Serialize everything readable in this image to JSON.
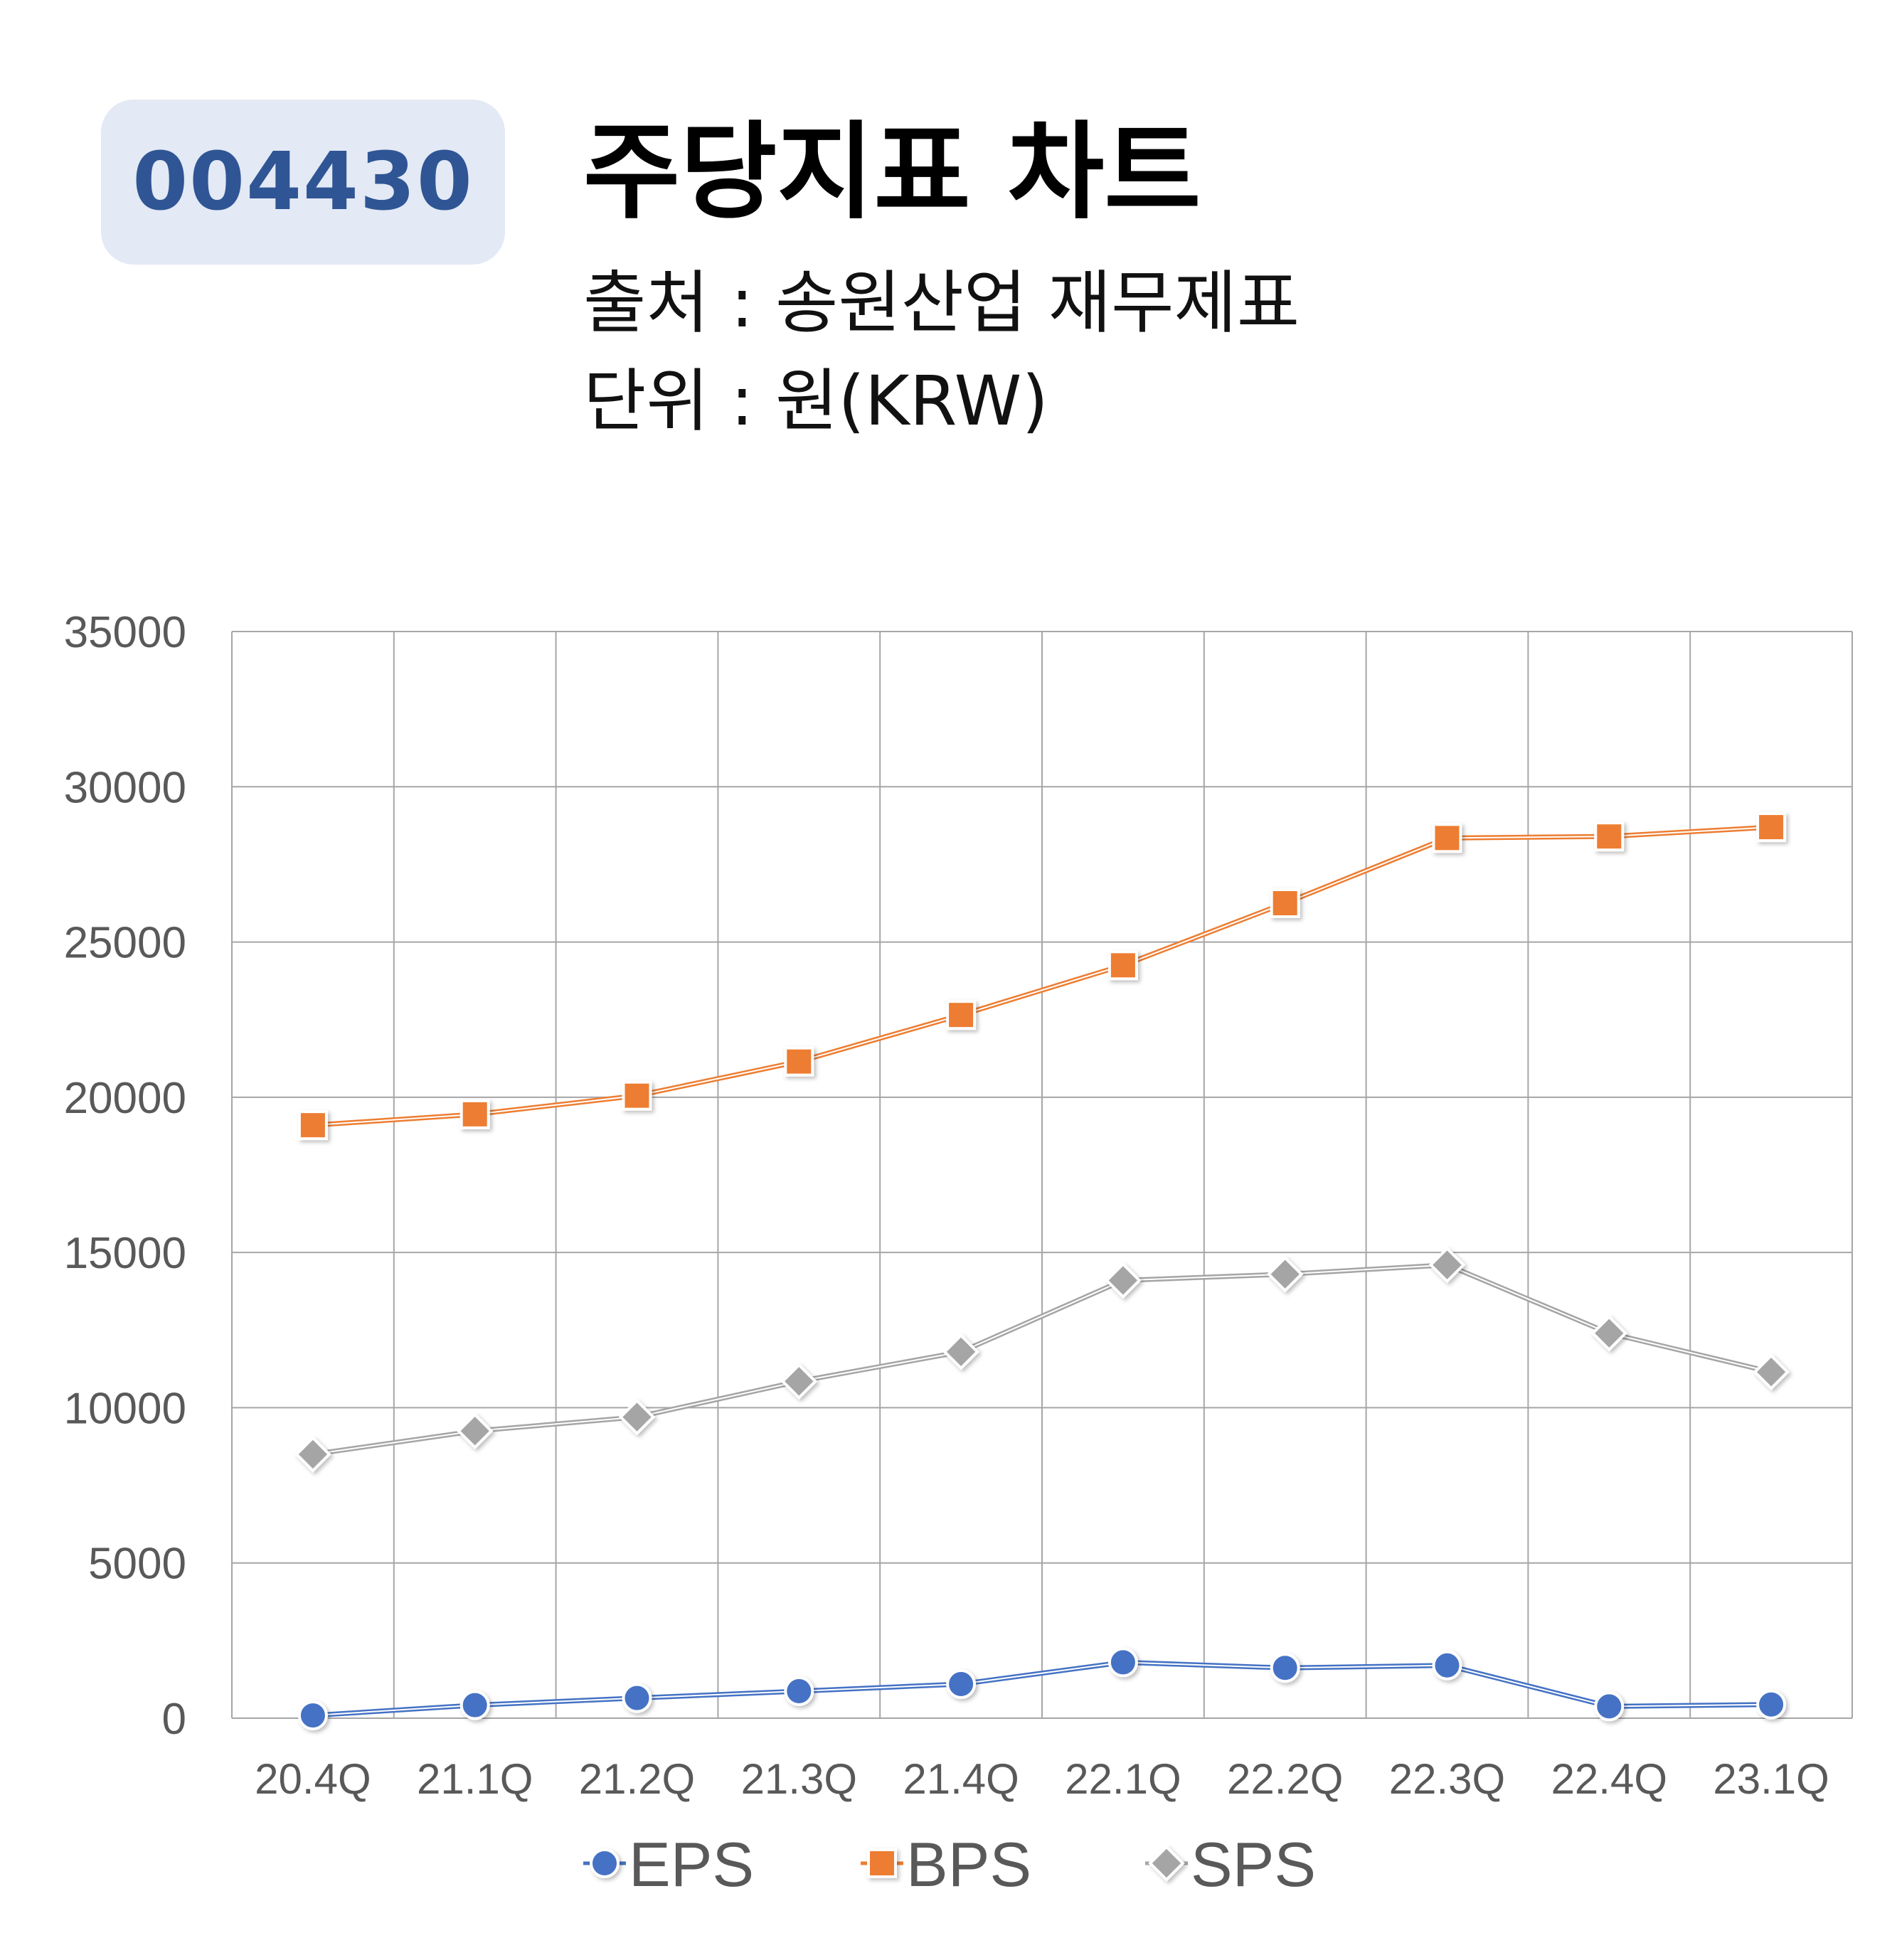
{
  "header": {
    "code": "004430",
    "title": "주당지표 차트",
    "source": "출처 : 송원산업 재무제표",
    "unit": "단위 : 원(KRW)"
  },
  "chart_data": {
    "type": "line",
    "title": "주당지표 차트",
    "xlabel": "",
    "ylabel": "",
    "categories": [
      "20.4Q",
      "21.1Q",
      "21.2Q",
      "21.3Q",
      "21.4Q",
      "22.1Q",
      "22.2Q",
      "22.3Q",
      "22.4Q",
      "23.1Q"
    ],
    "ylim": [
      0,
      35000
    ],
    "yticks": [
      0,
      5000,
      10000,
      15000,
      20000,
      25000,
      30000,
      35000
    ],
    "grid": true,
    "legend_position": "bottom",
    "series": [
      {
        "name": "EPS",
        "color": "#4472c4",
        "marker": "circle",
        "values": [
          90,
          420,
          650,
          870,
          1100,
          1800,
          1620,
          1700,
          380,
          440
        ]
      },
      {
        "name": "BPS",
        "color": "#ed7d31",
        "marker": "square",
        "values": [
          19100,
          19450,
          20050,
          21150,
          22650,
          24250,
          26250,
          28350,
          28400,
          28700
        ]
      },
      {
        "name": "SPS",
        "color": "#a5a5a5",
        "marker": "diamond",
        "values": [
          8500,
          9250,
          9700,
          10850,
          11800,
          14100,
          14300,
          14600,
          12400,
          11150
        ]
      }
    ]
  }
}
